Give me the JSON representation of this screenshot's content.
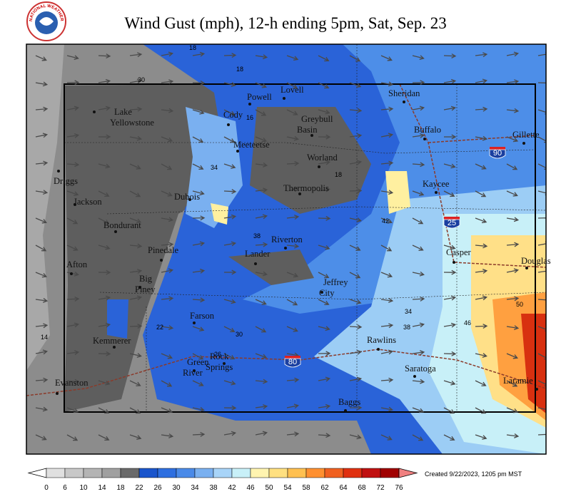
{
  "header": {
    "title": "Wind Gust (mph), 12-h ending 5pm, Sat, Sep. 23",
    "logo_text": "NATIONAL WEATHER SERVICE"
  },
  "cities": [
    [
      "Sheridan"
    ],
    [
      "Lovell"
    ],
    [
      "Powell"
    ],
    [
      "Cody"
    ],
    [
      "Lake",
      "Yellowstone"
    ],
    [
      "Greybull",
      "Basin"
    ],
    [
      "Buffalo"
    ],
    [
      "Gillette"
    ],
    [
      "Meeteetse"
    ],
    [
      "Worland"
    ],
    [
      "Driggs"
    ],
    [
      "Thermopolis"
    ],
    [
      "Kaycee"
    ],
    [
      "Dubois"
    ],
    [
      "Jackson"
    ],
    [
      "Bondurant"
    ],
    [
      "Riverton"
    ],
    [
      "Casper"
    ],
    [
      "Pinedale"
    ],
    [
      "Lander"
    ],
    [
      "Douglas"
    ],
    [
      "Afton"
    ],
    [
      "Big",
      "Piney"
    ],
    [
      "Jeffrey",
      "City"
    ],
    [
      "Farson"
    ],
    [
      "Rawlins"
    ],
    [
      "Kemmerer"
    ],
    [
      "Rock",
      "Springs"
    ],
    [
      "Green",
      "River"
    ],
    [
      "Saratoga"
    ],
    [
      "Evanston"
    ],
    [
      "Laramie"
    ],
    [
      "Baggs"
    ]
  ],
  "interstates": [
    "90",
    "25",
    "80"
  ],
  "contour_labels": [
    18,
    30,
    18,
    16,
    18,
    34,
    42,
    38,
    30,
    26,
    22,
    14,
    46,
    50,
    34,
    38
  ],
  "legend": {
    "ticks": [
      0,
      6,
      10,
      14,
      18,
      22,
      26,
      30,
      34,
      38,
      42,
      46,
      50,
      54,
      58,
      62,
      64,
      68,
      72,
      76
    ]
  },
  "footer": {
    "created": "Created 9/22/2023, 1205 pm MST"
  }
}
